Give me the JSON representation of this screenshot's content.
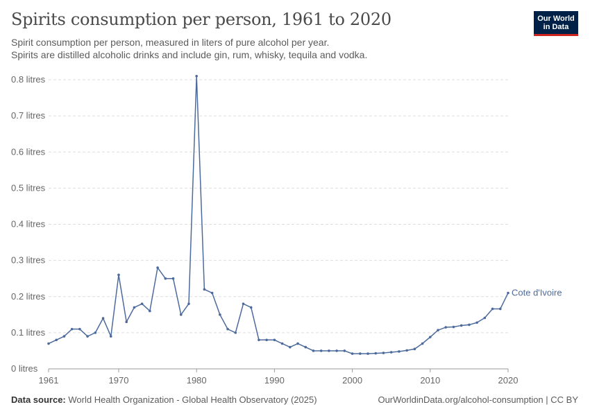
{
  "header": {
    "title": "Spirits consumption per person, 1961 to 2020",
    "subtitle_line1": "Spirit consumption per person, measured in liters of pure alcohol per year.",
    "subtitle_line2": "Spirits are distilled alcoholic drinks and include gin, rum, whisky, tequila and vodka."
  },
  "logo": {
    "line1": "Our World",
    "line2": "in Data",
    "bg_color": "#002147",
    "accent_color": "#ce261e"
  },
  "footer": {
    "source_label": "Data source:",
    "source_text": "World Health Organization - Global Health Observatory (2025)",
    "right_text": "OurWorldinData.org/alcohol-consumption | CC BY"
  },
  "chart_data": {
    "type": "line",
    "title": "Spirits consumption per person, 1961 to 2020",
    "xlabel": "",
    "ylabel": "",
    "xlim": [
      1961,
      2020
    ],
    "ylim": [
      0,
      0.8
    ],
    "y_ticks": [
      0,
      0.1,
      0.2,
      0.3,
      0.4,
      0.5,
      0.6,
      0.7,
      0.8
    ],
    "y_tick_labels": [
      "0 litres",
      "0.1 litres",
      "0.2 litres",
      "0.3 litres",
      "0.4 litres",
      "0.5 litres",
      "0.6 litres",
      "0.7 litres",
      "0.8 litres"
    ],
    "x_ticks": [
      1961,
      1970,
      1980,
      1990,
      2000,
      2010,
      2020
    ],
    "x_tick_labels": [
      "1961",
      "1970",
      "1980",
      "1990",
      "2000",
      "2010",
      "2020"
    ],
    "grid": true,
    "series": [
      {
        "name": "Cote d'Ivoire",
        "color": "#4c6a9c",
        "x": [
          1961,
          1962,
          1963,
          1964,
          1965,
          1966,
          1967,
          1968,
          1969,
          1970,
          1971,
          1972,
          1973,
          1974,
          1975,
          1976,
          1977,
          1978,
          1979,
          1980,
          1981,
          1982,
          1983,
          1984,
          1985,
          1986,
          1987,
          1988,
          1989,
          1990,
          1991,
          1992,
          1993,
          1994,
          1995,
          1996,
          1997,
          1998,
          1999,
          2000,
          2001,
          2002,
          2003,
          2004,
          2005,
          2006,
          2007,
          2008,
          2009,
          2010,
          2011,
          2012,
          2013,
          2014,
          2015,
          2016,
          2017,
          2018,
          2019,
          2020
        ],
        "values": [
          0.07,
          0.08,
          0.09,
          0.11,
          0.11,
          0.09,
          0.1,
          0.14,
          0.09,
          0.26,
          0.13,
          0.17,
          0.18,
          0.16,
          0.28,
          0.25,
          0.25,
          0.15,
          0.18,
          0.81,
          0.22,
          0.21,
          0.15,
          0.11,
          0.1,
          0.18,
          0.17,
          0.08,
          0.08,
          0.08,
          0.07,
          0.06,
          0.07,
          0.06,
          0.05,
          0.05,
          0.05,
          0.05,
          0.05,
          0.042,
          0.042,
          0.042,
          0.043,
          0.044,
          0.046,
          0.048,
          0.051,
          0.055,
          0.07,
          0.088,
          0.107,
          0.115,
          0.116,
          0.12,
          0.122,
          0.128,
          0.141,
          0.166,
          0.166,
          0.21
        ]
      }
    ]
  }
}
